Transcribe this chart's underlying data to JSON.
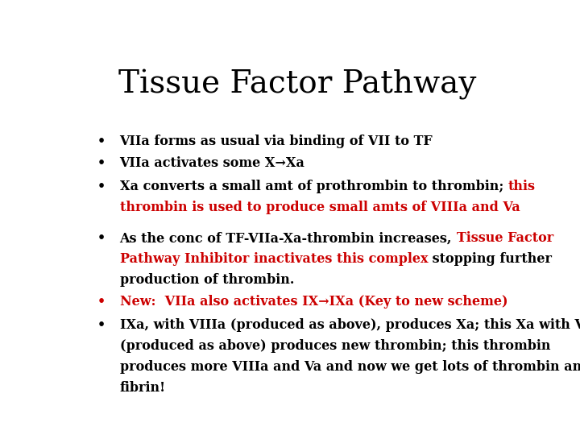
{
  "title": "Tissue Factor Pathway",
  "title_fontsize": 28,
  "title_font": "DejaVu Serif",
  "background_color": "#ffffff",
  "text_color": "#000000",
  "red_color": "#cc0000",
  "font_size": 11.5,
  "font_family": "DejaVu Serif",
  "bullet_char": "•",
  "bullets": [
    {
      "red_bullet": false,
      "lines": [
        [
          {
            "text": "VIIa forms as usual via binding of VII to TF",
            "color": "#000000"
          }
        ]
      ]
    },
    {
      "red_bullet": false,
      "lines": [
        [
          {
            "text": "VIIa activates some X→Xa",
            "color": "#000000"
          }
        ]
      ]
    },
    {
      "red_bullet": false,
      "lines": [
        [
          {
            "text": "Xa converts a small amt of prothrombin to thrombin; ",
            "color": "#000000"
          },
          {
            "text": "this",
            "color": "#cc0000"
          }
        ],
        [
          {
            "text": "thrombin is used to produce small amts of VIIIa and Va",
            "color": "#cc0000"
          }
        ]
      ]
    },
    {
      "red_bullet": false,
      "lines": [
        [
          {
            "text": "As the conc of TF-VIIa-Xa-thrombin increases, ",
            "color": "#000000"
          },
          {
            "text": "Tissue Factor",
            "color": "#cc0000"
          }
        ],
        [
          {
            "text": "Pathway Inhibitor inactivates this complex",
            "color": "#cc0000"
          },
          {
            "text": " stopping further",
            "color": "#000000"
          }
        ],
        [
          {
            "text": "production of thrombin.",
            "color": "#000000"
          }
        ]
      ]
    },
    {
      "red_bullet": true,
      "lines": [
        [
          {
            "text": "New:  VIIa also activates IX→IXa (Key to new scheme)",
            "color": "#cc0000"
          }
        ]
      ]
    },
    {
      "red_bullet": false,
      "lines": [
        [
          {
            "text": "IXa, with VIIIa (produced as above), produces Xa; this Xa with Va",
            "color": "#000000"
          }
        ],
        [
          {
            "text": "(produced as above) produces new thrombin; this thrombin",
            "color": "#000000"
          }
        ],
        [
          {
            "text": "produces more VIIIa and Va and now we get lots of thrombin and",
            "color": "#000000"
          }
        ],
        [
          {
            "text": "fibrin!",
            "color": "#000000"
          }
        ]
      ]
    }
  ]
}
